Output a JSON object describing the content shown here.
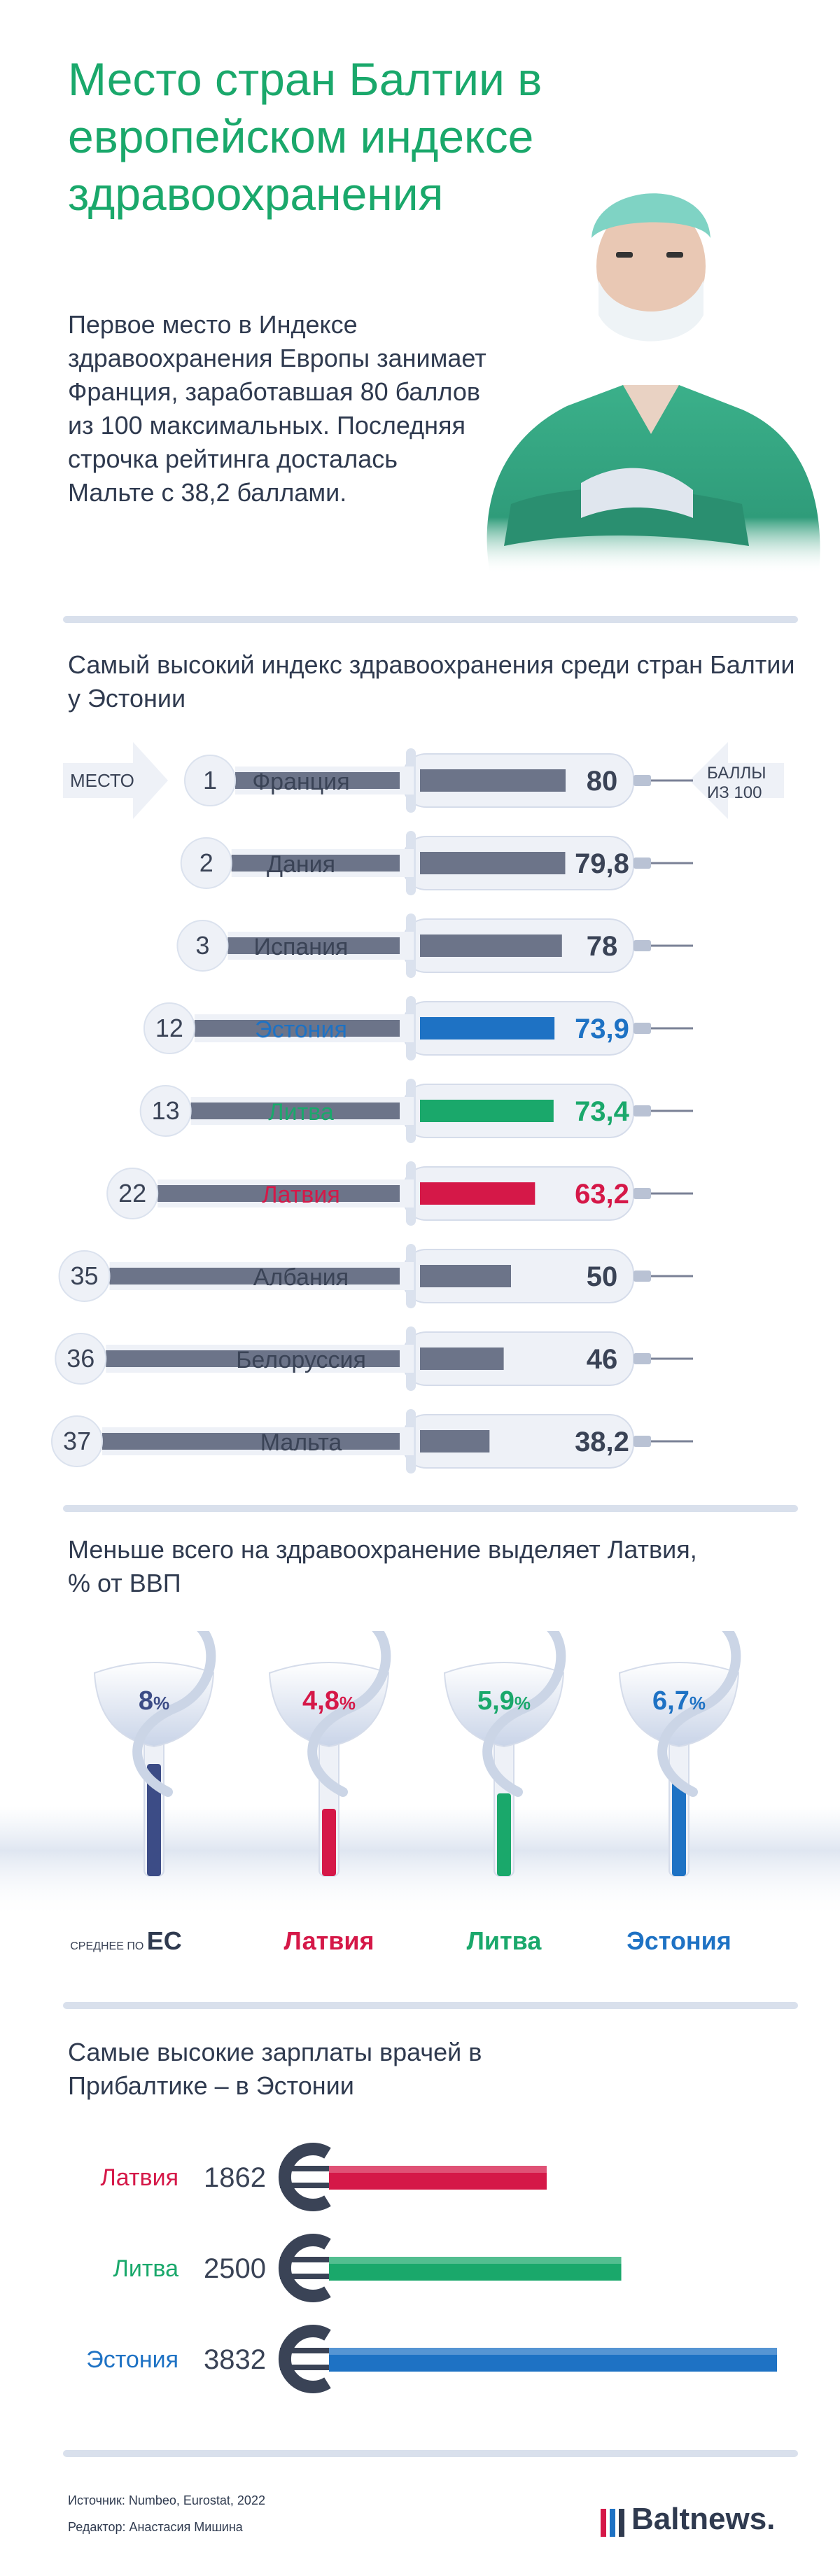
{
  "title": "Место стран Балтии в европейском индексе здравоохранения",
  "intro": "Первое место в Индексе здравоохранения Европы занимает Франция, заработавшая 80 баллов из 100 максимальных. Последняя строчка рейтинга досталась Мальте с 38,2 баллами.",
  "colors": {
    "green": "#1aa86b",
    "blue": "#1e72c4",
    "red": "#d51848",
    "gray": "#7a8196",
    "dark": "#2f3a4f"
  },
  "section1": {
    "heading": "Самый высокий индекс здравоохранения среди стран Балтии у Эстонии",
    "label_place": "МЕСТО",
    "label_points": "БАЛЛЫ ИЗ 100"
  },
  "chart_data": [
    {
      "type": "bar",
      "title": "Самый высокий индекс здравоохранения среди стран Балтии у Эстонии",
      "categories": [
        "Франция",
        "Дания",
        "Испания",
        "Эстония",
        "Литва",
        "Латвия",
        "Албания",
        "Белоруссия",
        "Мальта"
      ],
      "ranks": [
        "1",
        "2",
        "3",
        "12",
        "13",
        "22",
        "35",
        "36",
        "37"
      ],
      "values": [
        80,
        79.8,
        78,
        73.9,
        73.4,
        63.2,
        50,
        46,
        38.2
      ],
      "value_labels": [
        "80",
        "79,8",
        "78",
        "73,9",
        "73,4",
        "63,2",
        "50",
        "46",
        "38,2"
      ],
      "highlight": [
        "",
        "",
        "",
        "blue",
        "green",
        "red",
        "",
        "",
        ""
      ],
      "ylim": [
        0,
        100
      ]
    },
    {
      "type": "bar",
      "title": "Меньше всего на здравоохранение выделяет Латвия, % от ВВП",
      "categories": [
        "ЕС",
        "Латвия",
        "Литва",
        "Эстония"
      ],
      "category_prefix": [
        "СРЕДНЕЕ ПО",
        "",
        "",
        ""
      ],
      "values": [
        8,
        4.8,
        5.9,
        6.7
      ],
      "value_labels": [
        "8",
        "4,8",
        "5,9",
        "6,7"
      ],
      "unit": "%",
      "colors": [
        "#3c4c86",
        "#d51848",
        "#1aa86b",
        "#1e72c4"
      ]
    },
    {
      "type": "bar",
      "title": "Самые высокие зарплаты врачей в Прибалтике – в Эстонии",
      "categories": [
        "Латвия",
        "Литва",
        "Эстония"
      ],
      "values": [
        1862,
        2500,
        3832
      ],
      "colors": [
        "#d51848",
        "#1aa86b",
        "#1e72c4"
      ]
    }
  ],
  "footer": {
    "source": "Источник: Numbeo, Eurostat, 2022",
    "editor": "Редактор: Анастасия Мишина",
    "brand": "Baltnews."
  }
}
